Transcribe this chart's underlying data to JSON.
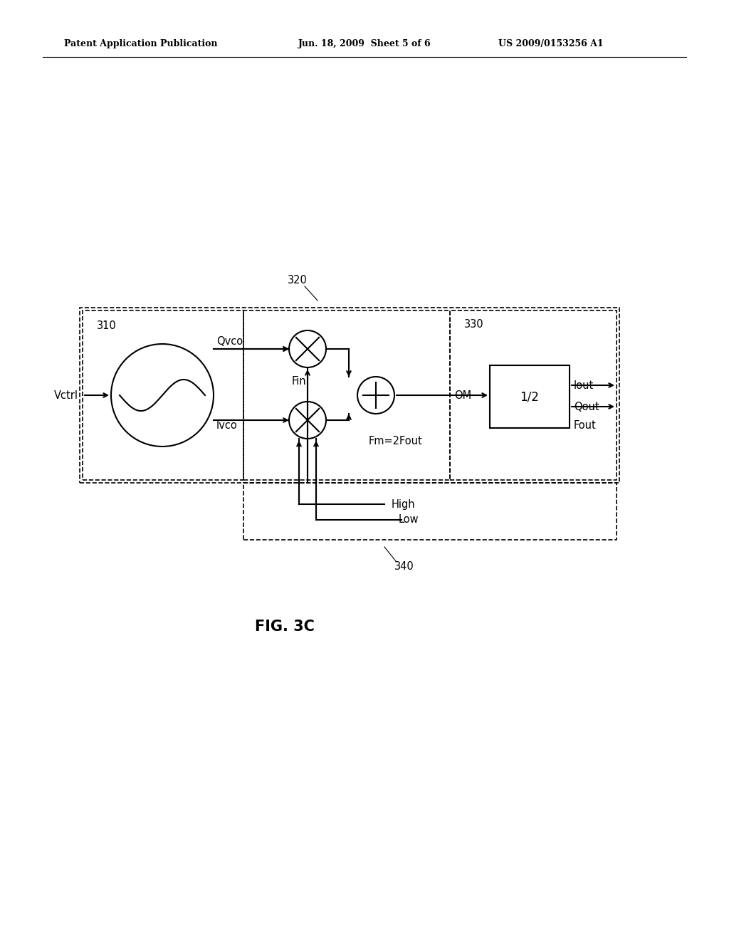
{
  "bg_color": "#ffffff",
  "line_color": "#000000",
  "text_color": "#000000",
  "header_left": "Patent Application Publication",
  "header_mid": "Jun. 18, 2009  Sheet 5 of 6",
  "header_right": "US 2009/0153256 A1",
  "fig_label": "FIG. 3C",
  "label_310": "310",
  "label_320": "320",
  "label_330": "330",
  "label_340": "340",
  "vctrl_label": "Vctrl",
  "qvco_label": "Qvco",
  "ivco_label": "Ivco",
  "fin_label": "Fin",
  "fm_label": "Fm=2Fout",
  "om_label": "OM",
  "half_label": "1/2",
  "iout_label": "Iout",
  "qout_label": "Qout",
  "fout_label": "Fout",
  "high_label": "High",
  "low_label": "Low"
}
